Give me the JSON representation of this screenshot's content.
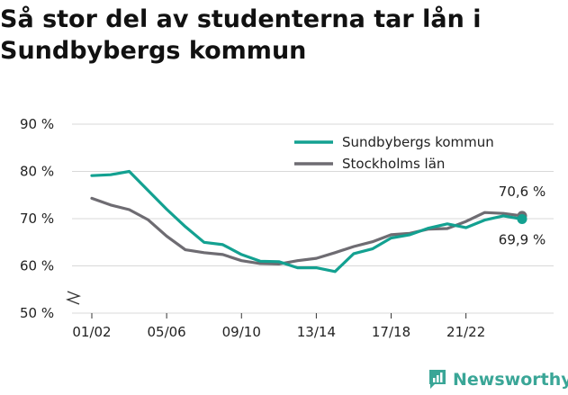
{
  "title": "Så stor del av studenterna tar lån i Sundbybergs kommun",
  "brand": "Newsworthy",
  "colors": {
    "series_a": "#13a191",
    "series_b": "#6e6c72",
    "brand": "#3aa697"
  },
  "chart_data": {
    "type": "line",
    "title": "Så stor del av studenterna tar lån i Sundbybergs kommun",
    "xlabel": "",
    "ylabel": "",
    "ylim": [
      50,
      90
    ],
    "yticks": [
      50,
      60,
      70,
      80,
      90
    ],
    "ytick_labels": [
      "50 %",
      "60 %",
      "70 %",
      "80 %",
      "90 %"
    ],
    "y_axis_break": true,
    "grid": true,
    "legend": "top-right",
    "x": [
      "01/02",
      "02/03",
      "03/04",
      "04/05",
      "05/06",
      "06/07",
      "07/08",
      "08/09",
      "09/10",
      "10/11",
      "11/12",
      "12/13",
      "13/14",
      "14/15",
      "15/16",
      "16/17",
      "17/18",
      "18/19",
      "19/20",
      "20/21",
      "21/22",
      "22/23",
      "23/24",
      "24/25"
    ],
    "xtick_labels": [
      "01/02",
      "05/06",
      "09/10",
      "13/14",
      "17/18",
      "21/22"
    ],
    "series": [
      {
        "name": "Sundbybergs kommun",
        "color": "#13a191",
        "values": [
          79.1,
          79.3,
          80.0,
          76.0,
          72.0,
          68.3,
          65.0,
          64.5,
          62.4,
          61.0,
          60.9,
          59.6,
          59.6,
          58.8,
          62.6,
          63.6,
          65.9,
          66.6,
          68.0,
          68.9,
          68.1,
          69.7,
          70.6,
          69.9
        ]
      },
      {
        "name": "Stockholms län",
        "color": "#6e6c72",
        "values": [
          74.3,
          72.9,
          71.9,
          69.8,
          66.3,
          63.4,
          62.8,
          62.4,
          61.1,
          60.5,
          60.4,
          61.1,
          61.6,
          62.8,
          64.1,
          65.1,
          66.6,
          66.9,
          67.8,
          67.9,
          69.4,
          71.3,
          71.1,
          70.6
        ]
      }
    ],
    "annotations": [
      {
        "series": "Stockholms län",
        "text": "70,6 %"
      },
      {
        "series": "Sundbybergs kommun",
        "text": "69,9 %"
      }
    ]
  }
}
